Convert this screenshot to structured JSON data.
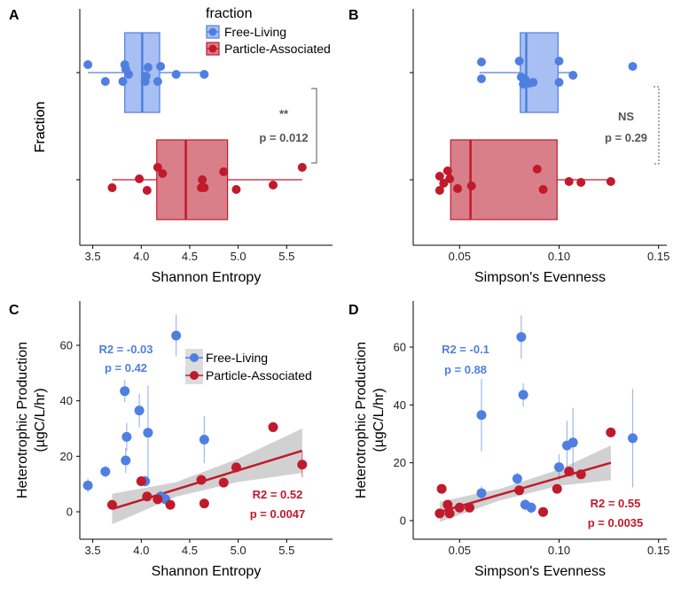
{
  "colors": {
    "free": "#4f7fe0",
    "particle": "#c01a2c",
    "free_fill": "#a7bff2",
    "particle_fill": "#d97f89",
    "band": "#c9c9c9"
  },
  "legend": {
    "title": "fraction",
    "items": [
      "Free-Living",
      "Particle-Associated"
    ]
  },
  "chart_data": [
    {
      "panel": "A",
      "type": "box",
      "xlabel": "Shannon Entropy",
      "ylabel": "Fraction",
      "xlim": [
        3.3,
        5.82
      ],
      "xticks": [
        3.5,
        4.0,
        4.5,
        5.0,
        5.5
      ],
      "xticklabels": [
        "3.5",
        "4.0",
        "4.5",
        "5.0",
        "5.5"
      ],
      "series": [
        {
          "name": "Free-Living",
          "box": {
            "whisker_low": 3.45,
            "q1": 3.83,
            "median": 4.01,
            "q3": 4.19,
            "whisker_high": 4.65
          },
          "points": [
            [
              3.45,
              -0.09
            ],
            [
              3.63,
              0.1
            ],
            [
              3.81,
              0.1
            ],
            [
              3.87,
              0.02
            ],
            [
              3.83,
              -0.09
            ],
            [
              3.84,
              -0.04
            ],
            [
              4.04,
              0.1
            ],
            [
              4.07,
              -0.06
            ],
            [
              4.05,
              0.04
            ],
            [
              4.17,
              0.1
            ],
            [
              4.2,
              -0.07
            ],
            [
              4.36,
              0.02
            ],
            [
              4.65,
              0.02
            ]
          ]
        },
        {
          "name": "Particle-Associated",
          "box": {
            "whisker_low": 3.7,
            "q1": 4.16,
            "median": 4.46,
            "q3": 4.89,
            "whisker_high": 5.66
          },
          "points": [
            [
              3.7,
              0.09
            ],
            [
              3.98,
              -0.01
            ],
            [
              4.06,
              0.12
            ],
            [
              4.17,
              -0.14
            ],
            [
              4.22,
              -0.07
            ],
            [
              4.62,
              0.09
            ],
            [
              4.63,
              0.0
            ],
            [
              4.65,
              0.09
            ],
            [
              4.85,
              -0.09
            ],
            [
              4.98,
              0.11
            ],
            [
              5.36,
              0.06
            ],
            [
              5.66,
              -0.14
            ]
          ]
        }
      ],
      "annotation": {
        "stars": "**",
        "text": "p = 0.012"
      }
    },
    {
      "panel": "B",
      "type": "box",
      "xlabel": "Simpson's Evenness",
      "ylabel": "Fraction",
      "xlim": [
        0.034,
        0.155
      ],
      "xticks": [
        0.05,
        0.1,
        0.15
      ],
      "xticklabels": [
        "0.05",
        "0.10",
        "0.15"
      ],
      "series": [
        {
          "name": "Free-Living",
          "box": {
            "whisker_low": 0.06,
            "q1": 0.0805,
            "median": 0.0835,
            "q3": 0.0995,
            "whisker_high": 0.107
          },
          "points": [
            [
              0.061,
              0.07
            ],
            [
              0.061,
              -0.12
            ],
            [
              0.081,
              0.05
            ],
            [
              0.082,
              0.13
            ],
            [
              0.083,
              0.08
            ],
            [
              0.085,
              0.12
            ],
            [
              0.087,
              0.11
            ],
            [
              0.08,
              -0.13
            ],
            [
              0.1,
              0.11
            ],
            [
              0.1,
              -0.13
            ],
            [
              0.107,
              0.03
            ],
            [
              0.137,
              -0.07
            ]
          ]
        },
        {
          "name": "Particle-Associated",
          "box": {
            "whisker_low": 0.04,
            "q1": 0.0455,
            "median": 0.0555,
            "q3": 0.099,
            "whisker_high": 0.126
          },
          "points": [
            [
              0.04,
              0.12
            ],
            [
              0.04,
              -0.04
            ],
            [
              0.042,
              0.04
            ],
            [
              0.044,
              -0.1
            ],
            [
              0.045,
              -0.01
            ],
            [
              0.049,
              0.1
            ],
            [
              0.056,
              0.07
            ],
            [
              0.089,
              -0.12
            ],
            [
              0.092,
              0.11
            ],
            [
              0.105,
              0.02
            ],
            [
              0.111,
              0.03
            ],
            [
              0.126,
              0.02
            ]
          ]
        }
      ],
      "annotation": {
        "stars": "NS",
        "text": "p = 0.29"
      }
    },
    {
      "panel": "C",
      "type": "scatter",
      "xlabel": "Shannon Entropy",
      "ylabel": [
        "Heterotrophic Production",
        "(µgC/L/hr)"
      ],
      "xlim": [
        3.3,
        5.82
      ],
      "ylim": [
        -9.5,
        73
      ],
      "xticks": [
        3.5,
        4.0,
        4.5,
        5.0,
        5.5
      ],
      "xticklabels": [
        "3.5",
        "4.0",
        "4.5",
        "5.0",
        "5.5"
      ],
      "yticks": [
        0,
        20,
        40,
        60
      ],
      "yticklabels": [
        "0",
        "20",
        "40",
        "60"
      ],
      "series": [
        {
          "name": "Free-Living",
          "points": [
            [
              3.45,
              9.5,
              2.5
            ],
            [
              3.63,
              14.5,
              2.0
            ],
            [
              3.83,
              43.5,
              4.0
            ],
            [
              3.85,
              27.0,
              5.0
            ],
            [
              3.84,
              18.5,
              4.5
            ],
            [
              3.98,
              36.5,
              6.0
            ],
            [
              4.04,
              11.0,
              2.0
            ],
            [
              4.07,
              28.5,
              17.0
            ],
            [
              4.2,
              5.5,
              2.0
            ],
            [
              4.25,
              4.5,
              2.0
            ],
            [
              4.36,
              63.5,
              7.5
            ],
            [
              4.65,
              26.0,
              8.5
            ]
          ],
          "fit": null,
          "stats": [
            "R2 = -0.03",
            "p = 0.42"
          ]
        },
        {
          "name": "Particle-Associated",
          "points": [
            [
              3.7,
              2.5,
              0
            ],
            [
              4.0,
              11.0,
              0
            ],
            [
              4.06,
              5.5,
              0
            ],
            [
              4.17,
              4.5,
              0
            ],
            [
              4.3,
              2.5,
              0
            ],
            [
              4.62,
              11.5,
              0
            ],
            [
              4.65,
              3.0,
              0
            ],
            [
              4.85,
              10.5,
              0
            ],
            [
              4.98,
              16.0,
              0
            ],
            [
              5.36,
              30.5,
              0
            ],
            [
              5.66,
              17.0,
              4.5
            ]
          ],
          "fit": {
            "x": [
              3.7,
              5.66
            ],
            "y": [
              1.0,
              22.0
            ],
            "band_half": [
              [
                3.7,
                5.5
              ],
              [
                4.35,
                2.6
              ],
              [
                5.0,
                4.2
              ],
              [
                5.66,
                8.0
              ]
            ]
          },
          "stats": [
            "R2 = 0.52",
            "p = 0.0047"
          ]
        }
      ]
    },
    {
      "panel": "D",
      "type": "scatter",
      "xlabel": "Simpson's Evenness",
      "ylabel": [
        "Heterotrophic Production",
        "(µgC/L/hr)"
      ],
      "xlim": [
        0.034,
        0.155
      ],
      "ylim": [
        -7,
        74
      ],
      "xticks": [
        0.05,
        0.1,
        0.15
      ],
      "xticklabels": [
        "0.05",
        "0.10",
        "0.15"
      ],
      "yticks": [
        0,
        20,
        40,
        60
      ],
      "yticklabels": [
        "0",
        "20",
        "40",
        "60"
      ],
      "series": [
        {
          "name": "Free-Living",
          "points": [
            [
              0.061,
              36.5,
              12.5
            ],
            [
              0.061,
              9.5,
              2.5
            ],
            [
              0.079,
              14.5,
              2.0
            ],
            [
              0.081,
              63.5,
              7.5
            ],
            [
              0.082,
              43.5,
              4.0
            ],
            [
              0.083,
              5.5,
              2.0
            ],
            [
              0.086,
              4.5,
              2.0
            ],
            [
              0.1,
              18.5,
              4.5
            ],
            [
              0.104,
              26.0,
              8.5
            ],
            [
              0.107,
              27.0,
              12.0
            ],
            [
              0.137,
              28.5,
              17.0
            ]
          ],
          "fit": null,
          "stats": [
            "R2 = -0.1",
            "p = 0.88"
          ]
        },
        {
          "name": "Particle-Associated",
          "points": [
            [
              0.04,
              2.5,
              0
            ],
            [
              0.041,
              11.0,
              0
            ],
            [
              0.044,
              5.5,
              0
            ],
            [
              0.045,
              2.5,
              0
            ],
            [
              0.05,
              4.5,
              0
            ],
            [
              0.055,
              4.5,
              0
            ],
            [
              0.08,
              10.5,
              0
            ],
            [
              0.092,
              3.0,
              0
            ],
            [
              0.099,
              11.0,
              0
            ],
            [
              0.105,
              17.0,
              0
            ],
            [
              0.111,
              16.0,
              0
            ],
            [
              0.126,
              30.5,
              0
            ]
          ],
          "fit": {
            "x": [
              0.04,
              0.126
            ],
            "y": [
              3.0,
              20.0
            ],
            "band_half": [
              [
                0.04,
                3.5
              ],
              [
                0.07,
                2.0
              ],
              [
                0.1,
                2.8
              ],
              [
                0.126,
                6.0
              ]
            ]
          },
          "stats": [
            "R2 = 0.55",
            "p = 0.0035"
          ]
        }
      ]
    }
  ]
}
